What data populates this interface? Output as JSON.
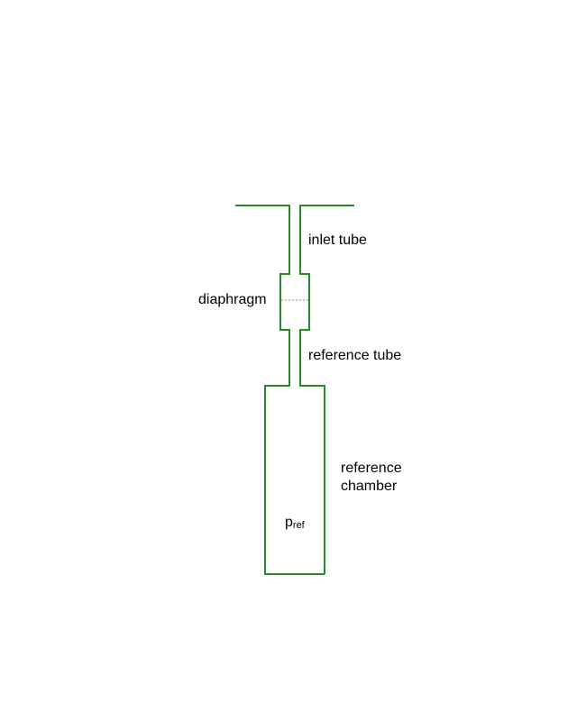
{
  "diagram": {
    "labels": {
      "inlet_tube": "inlet tube",
      "diaphragm": "diaphragm",
      "reference_tube": "reference tube",
      "reference_chamber_line1": "reference",
      "reference_chamber_line2": "chamber",
      "pressure_symbol": "p",
      "pressure_subscript": "ref"
    },
    "colors": {
      "outline": "#2a8a2a",
      "diaphragm_line": "#808080",
      "text": "#000000"
    }
  }
}
